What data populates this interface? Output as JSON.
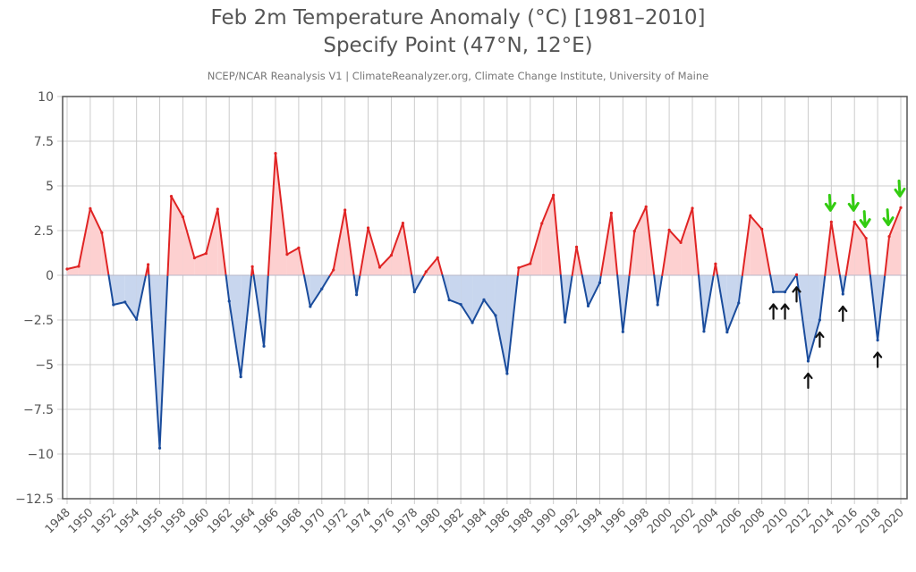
{
  "chart_data": {
    "type": "area",
    "title": "Feb 2m Temperature Anomaly (°C) [1981–2010]",
    "subtitle": "Specify Point (47°N, 12°E)",
    "credit": "NCEP/NCAR Reanalysis V1 | ClimateReanalyzer.org, Climate Change Institute, University of Maine",
    "xlabel": "",
    "ylabel": "",
    "xlim": [
      1947.6,
      2020.5
    ],
    "ylim": [
      -12.5,
      10
    ],
    "grid": true,
    "legend": "none",
    "yticks": [
      10,
      7.5,
      5,
      2.5,
      0,
      -2.5,
      -5,
      -7.5,
      -10,
      -12.5
    ],
    "ytick_labels": [
      "10",
      "7.5",
      "5",
      "2.5",
      "0",
      "−2.5",
      "−5",
      "−7.5",
      "−10",
      "−12.5"
    ],
    "xticks": [
      1948,
      1950,
      1952,
      1954,
      1956,
      1958,
      1960,
      1962,
      1964,
      1966,
      1968,
      1970,
      1972,
      1974,
      1976,
      1978,
      1980,
      1982,
      1984,
      1986,
      1988,
      1990,
      1992,
      1994,
      1996,
      1998,
      2000,
      2002,
      2004,
      2006,
      2008,
      2010,
      2012,
      2014,
      2016,
      2018,
      2020
    ],
    "colors": {
      "positive_line": "#e02424",
      "positive_fill": "#fdd0d0",
      "negative_line": "#1a4c9c",
      "negative_fill": "#c8d6ee"
    },
    "x": [
      1948,
      1949,
      1950,
      1951,
      1952,
      1953,
      1954,
      1955,
      1956,
      1957,
      1958,
      1959,
      1960,
      1961,
      1962,
      1963,
      1964,
      1965,
      1966,
      1967,
      1968,
      1969,
      1970,
      1971,
      1972,
      1973,
      1974,
      1975,
      1976,
      1977,
      1978,
      1979,
      1980,
      1981,
      1982,
      1983,
      1984,
      1985,
      1986,
      1987,
      1988,
      1989,
      1990,
      1991,
      1992,
      1993,
      1994,
      1995,
      1996,
      1997,
      1998,
      1999,
      2000,
      2001,
      2002,
      2003,
      2004,
      2005,
      2006,
      2007,
      2008,
      2009,
      2010,
      2011,
      2012,
      2013,
      2014,
      2015,
      2016,
      2017,
      2018,
      2019,
      2020
    ],
    "series": [
      {
        "name": "Feb 2m Temperature Anomaly (°C)",
        "values": [
          0.35,
          0.5,
          3.73,
          2.38,
          -1.65,
          -1.5,
          -2.47,
          0.6,
          -9.67,
          4.42,
          3.27,
          0.97,
          1.22,
          3.7,
          -1.45,
          -5.68,
          0.48,
          -3.97,
          6.82,
          1.17,
          1.53,
          -1.75,
          -0.76,
          0.3,
          3.65,
          -1.09,
          2.65,
          0.45,
          1.12,
          2.92,
          -0.93,
          0.2,
          0.98,
          -1.38,
          -1.63,
          -2.65,
          -1.37,
          -2.25,
          -5.5,
          0.42,
          0.65,
          2.9,
          4.48,
          -2.62,
          1.58,
          -1.72,
          -0.42,
          3.48,
          -3.16,
          2.47,
          3.83,
          -1.65,
          2.53,
          1.83,
          3.75,
          -3.14,
          0.64,
          -3.18,
          -1.55,
          3.33,
          2.58,
          -0.93,
          -0.93,
          0.03,
          -4.8,
          -2.5,
          2.98,
          -1.05,
          2.98,
          2.07,
          -3.63,
          2.17,
          3.78
        ]
      }
    ],
    "annotations": {
      "black_up_arrows_years": [
        2009,
        2010,
        2011,
        2012,
        2013,
        2015,
        2018
      ],
      "green_down_arrows_years": [
        2014,
        2016,
        2017,
        2019,
        2020
      ]
    }
  }
}
